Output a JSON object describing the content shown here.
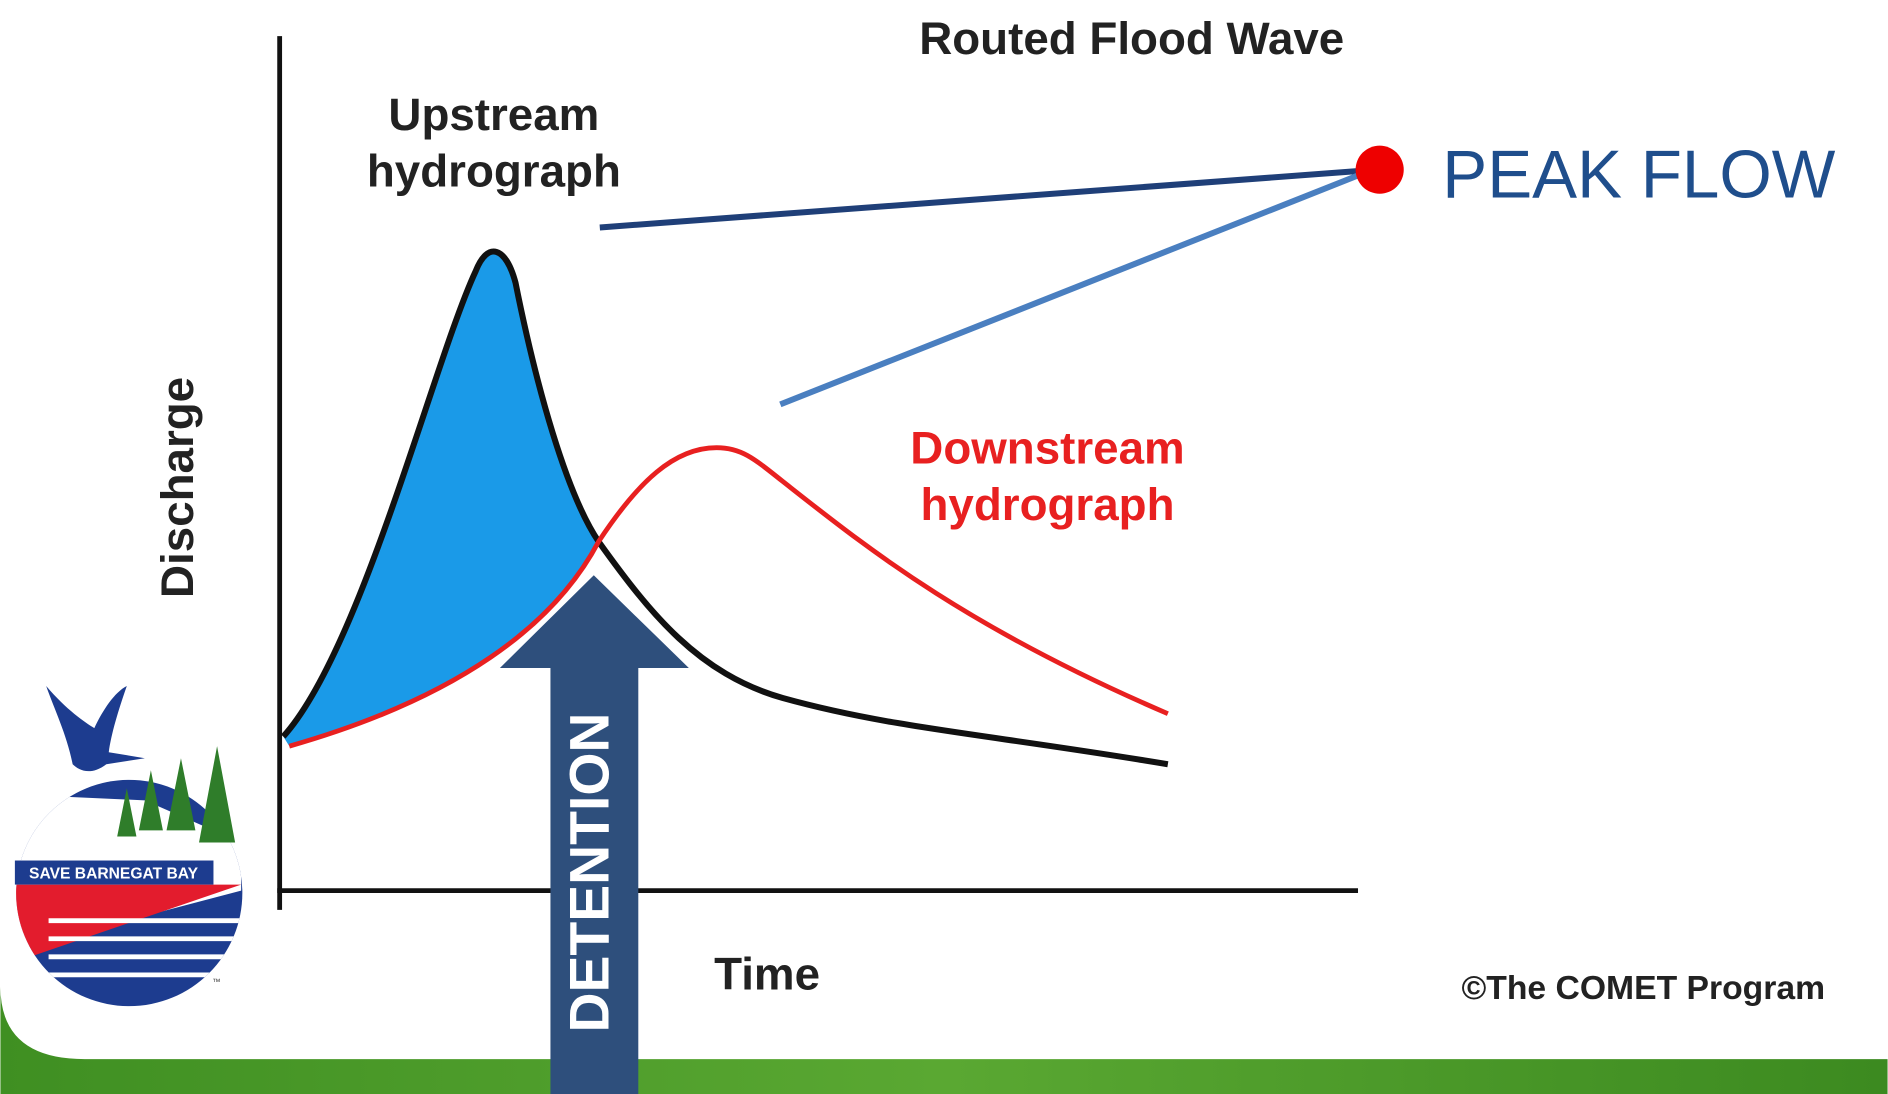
{
  "title": "Routed Flood Wave",
  "upstream_label": [
    "Upstream",
    "hydrograph"
  ],
  "downstream_label": [
    "Downstream",
    "hydrograph"
  ],
  "y_axis_label": "Discharge",
  "x_axis_label": "Time",
  "credit": "©The COMET Program",
  "callout": "PEAK FLOW",
  "arrow_label": "DETENTION",
  "logo": {
    "text": "SAVE BARNEGAT BAY",
    "mark": "™"
  }
}
